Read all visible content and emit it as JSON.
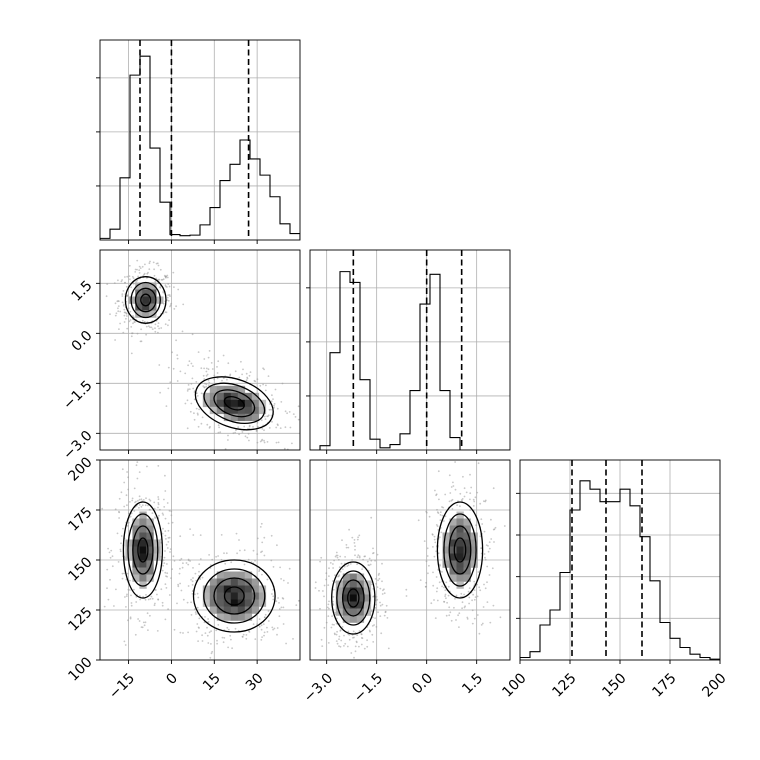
{
  "chart_data": {
    "type": "corner",
    "grid": true,
    "colors": {
      "line": "#000000",
      "grid": "#b0b0b0",
      "scatter": "#9a9a9a",
      "density_low": "#ffffff",
      "density_high": "#000000"
    },
    "parameters": [
      {
        "index": 0,
        "range": [
          -25,
          45
        ],
        "ticks": [
          -15,
          0,
          15,
          30
        ],
        "tick_labels": [
          "−15",
          "0",
          "15",
          "30"
        ]
      },
      {
        "index": 1,
        "range": [
          -3.5,
          2.5
        ],
        "ticks": [
          -3.0,
          -1.5,
          0.0,
          1.5
        ],
        "tick_labels": [
          "−3.0",
          "−1.5",
          "0.0",
          "1.5"
        ]
      },
      {
        "index": 2,
        "range": [
          100,
          200
        ],
        "ticks": [
          100,
          125,
          150,
          175,
          200
        ],
        "tick_labels": [
          "100",
          "125",
          "150",
          "175",
          "200"
        ]
      }
    ],
    "histograms": [
      {
        "param": 0,
        "y_max": 3700,
        "y_grid": [
          1000,
          2000,
          3000
        ],
        "bin_edges": [
          -25,
          -21.5,
          -18,
          -14.5,
          -11,
          -7.5,
          -4,
          -0.5,
          3,
          6.5,
          10,
          13.5,
          17,
          20.5,
          24,
          27.5,
          31,
          34.5,
          38,
          41.5,
          45
        ],
        "counts": [
          30,
          200,
          1150,
          3050,
          3400,
          1700,
          700,
          100,
          80,
          90,
          280,
          600,
          1100,
          1400,
          1850,
          1500,
          1200,
          800,
          300,
          120
        ],
        "quantiles": [
          -11,
          0,
          27
        ]
      },
      {
        "param": 1,
        "y_max": 3700,
        "y_grid": [
          1000,
          2000,
          3000
        ],
        "bin_edges": [
          -3.5,
          -3.2,
          -2.9,
          -2.6,
          -2.3,
          -2.0,
          -1.7,
          -1.4,
          -1.1,
          -0.8,
          -0.5,
          -0.2,
          0.1,
          0.4,
          0.7,
          1.0,
          1.3,
          1.6,
          1.9,
          2.2,
          2.5
        ],
        "counts": [
          0,
          80,
          1800,
          3300,
          3100,
          1300,
          200,
          40,
          100,
          300,
          1100,
          2700,
          3250,
          1100,
          230,
          0,
          0,
          0,
          0,
          0
        ],
        "quantiles": [
          -2.2,
          0.0,
          1.05
        ]
      },
      {
        "param": 2,
        "y_max": 2400,
        "y_grid": [
          500,
          1000,
          1500,
          2000
        ],
        "bin_edges": [
          100,
          105,
          110,
          115,
          120,
          125,
          130,
          135,
          140,
          145,
          150,
          155,
          160,
          165,
          170,
          175,
          180,
          185,
          190,
          195,
          200
        ],
        "counts": [
          30,
          100,
          420,
          600,
          1050,
          1800,
          2150,
          2050,
          1900,
          1900,
          2050,
          1850,
          1480,
          950,
          450,
          260,
          150,
          70,
          30,
          10
        ],
        "quantiles": [
          126,
          143,
          161
        ]
      }
    ],
    "pairs": [
      {
        "x_param": 0,
        "y_param": 1,
        "clusters": [
          {
            "center": [
              -9,
              1.0
            ],
            "sigma": [
              3.5,
              0.35
            ],
            "rho": 0.0,
            "weight": 0.5
          },
          {
            "center": [
              22,
              -2.1
            ],
            "sigma": [
              7.0,
              0.4
            ],
            "rho": -0.35,
            "weight": 0.5
          }
        ]
      },
      {
        "x_param": 0,
        "y_param": 2,
        "clusters": [
          {
            "center": [
              -10,
              155
            ],
            "sigma": [
              3.5,
              12
            ],
            "rho": 0.0,
            "weight": 0.5
          },
          {
            "center": [
              22,
              132
            ],
            "sigma": [
              7.0,
              9
            ],
            "rho": 0.0,
            "weight": 0.5
          }
        ]
      },
      {
        "x_param": 1,
        "y_param": 2,
        "clusters": [
          {
            "center": [
              -2.2,
              131
            ],
            "sigma": [
              0.33,
              9
            ],
            "rho": 0.0,
            "weight": 0.5
          },
          {
            "center": [
              1.0,
              155
            ],
            "sigma": [
              0.33,
              12
            ],
            "rho": 0.0,
            "weight": 0.5
          }
        ]
      }
    ],
    "contour_levels_sigma": [
      0.5,
      1.0,
      1.5,
      2.0
    ]
  }
}
